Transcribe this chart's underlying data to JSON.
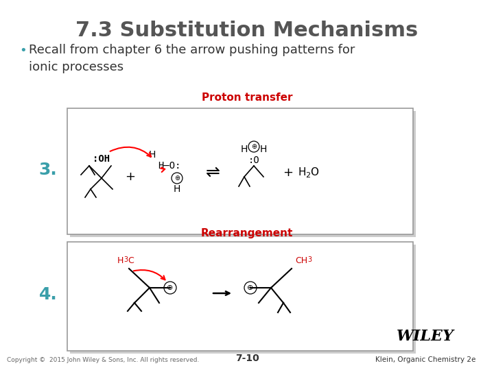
{
  "title": "7.3 Substitution Mechanisms",
  "bullet_text": "Recall from chapter 6 the arrow pushing patterns for\nionic processes",
  "label3": "3.",
  "label4": "4.",
  "proton_label": "Proton transfer",
  "rearrangement_label": "Rearrangement",
  "footer_left": "Copyright ©  2015 John Wiley & Sons, Inc. All rights reserved.",
  "footer_center": "7-10",
  "footer_right": "Klein, Organic Chemistry 2e",
  "wiley": "WILEY",
  "bg_color": "#ffffff",
  "title_color": "#555555",
  "bullet_color": "#333333",
  "teal_color": "#3a9faa",
  "red_color": "#cc0000",
  "box_edge_color": "#999999",
  "title_fontsize": 22,
  "bullet_fontsize": 13,
  "label_fontsize": 18
}
